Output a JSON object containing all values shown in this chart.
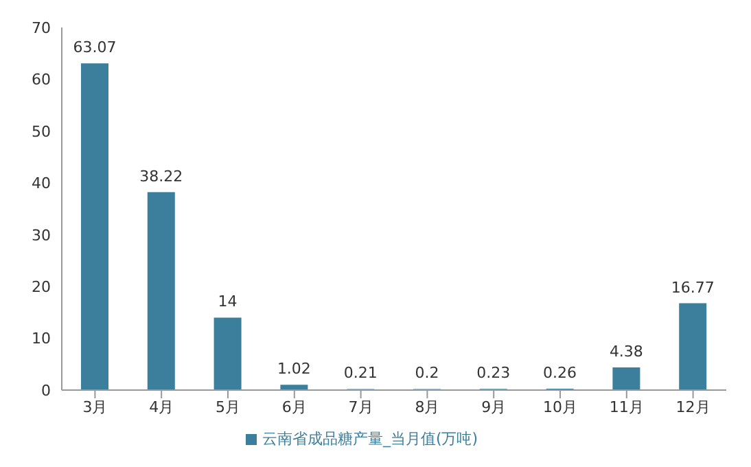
{
  "chart_data": {
    "type": "bar",
    "categories": [
      "3月",
      "4月",
      "5月",
      "6月",
      "7月",
      "8月",
      "9月",
      "10月",
      "11月",
      "12月"
    ],
    "series": [
      {
        "name": "云南省成品糖产量_当月值(万吨)",
        "color": "#3c7f9c",
        "values": [
          63.07,
          38.22,
          14,
          1.02,
          0.21,
          0.2,
          0.23,
          0.26,
          4.38,
          16.77
        ]
      }
    ],
    "ylim": [
      0,
      70
    ],
    "yticks": [
      0,
      10,
      20,
      30,
      40,
      50,
      60,
      70
    ],
    "data_labels": true,
    "legend": "bottom",
    "grid": false
  }
}
